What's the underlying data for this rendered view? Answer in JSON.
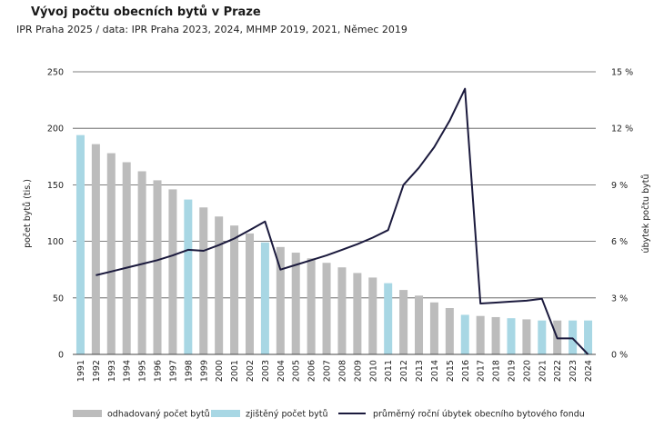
{
  "chart_data": {
    "type": "bar+line",
    "title": "Vývoj počtu obecních bytů v Praze",
    "subtitle": "IPR Praha 2025 / data: IPR Praha 2023, 2024, MHMP 2019, 2021, Němec 2019",
    "categories": [
      "1991",
      "1992",
      "1993",
      "1994",
      "1995",
      "1996",
      "1997",
      "1998",
      "1999",
      "2000",
      "2001",
      "2002",
      "2003",
      "2004",
      "2005",
      "2006",
      "2007",
      "2008",
      "2009",
      "2010",
      "2011",
      "2012",
      "2013",
      "2014",
      "2015",
      "2016",
      "2017",
      "2018",
      "2019",
      "2020",
      "2021",
      "2022",
      "2023",
      "2024"
    ],
    "series": [
      {
        "name": "odhadovaný počet bytů",
        "kind": "bar",
        "color": "#bcbcbc",
        "values": [
          null,
          186,
          178,
          170,
          162,
          154,
          146,
          null,
          130,
          122,
          114,
          107,
          null,
          95,
          90,
          85,
          81,
          77,
          72,
          68,
          null,
          57,
          52,
          46,
          41,
          null,
          34,
          33,
          null,
          31,
          null,
          30,
          null,
          null
        ]
      },
      {
        "name": "zjištěný počet bytů",
        "kind": "bar",
        "color": "#a8d7e4",
        "values": [
          194,
          null,
          null,
          null,
          null,
          null,
          null,
          137,
          null,
          null,
          null,
          null,
          99,
          null,
          null,
          null,
          null,
          null,
          null,
          null,
          63,
          null,
          null,
          null,
          null,
          35,
          null,
          null,
          32,
          null,
          30,
          null,
          30,
          30
        ]
      },
      {
        "name": "průměrný roční úbytek obecního bytového fondu",
        "kind": "line",
        "axis": "right",
        "color": "#1b1a3d",
        "values": [
          null,
          4.2,
          4.4,
          4.6,
          4.8,
          5.0,
          5.25,
          5.55,
          5.5,
          5.8,
          6.15,
          6.6,
          7.05,
          4.5,
          4.75,
          5.0,
          5.25,
          5.55,
          5.85,
          6.2,
          6.6,
          9.0,
          9.9,
          11.0,
          12.4,
          14.1,
          2.7,
          2.75,
          2.8,
          2.85,
          2.95,
          0.85,
          0.85,
          0.0
        ]
      }
    ],
    "ylabel": "počet bytů (tis.)",
    "ylabel_right": "úbytek počtu bytů",
    "ylim": [
      0,
      250
    ],
    "yticks": [
      "0",
      "50",
      "100",
      "150",
      "200",
      "250"
    ],
    "ylim_right": [
      0,
      15
    ],
    "yticks_right": [
      "0 %",
      "3 %",
      "6 %",
      "9 %",
      "12 %",
      "15 %"
    ],
    "grid": true,
    "legend_position": "bottom"
  }
}
